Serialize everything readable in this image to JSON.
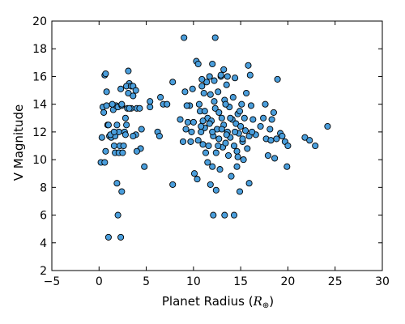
{
  "chart_data": {
    "type": "scatter",
    "title": "",
    "xlabel": "Planet Radius (R⊕)",
    "xlabel_text": "Planet Radius (",
    "xlabel_symbol": "R",
    "xlabel_subscript": "⊕",
    "xlabel_close": ")",
    "ylabel": "V Magnitude",
    "xlim": [
      -5,
      30
    ],
    "ylim": [
      2,
      20
    ],
    "xticks": [
      -5,
      0,
      5,
      10,
      15,
      20,
      25,
      30
    ],
    "yticks": [
      2,
      4,
      6,
      8,
      10,
      12,
      14,
      16,
      18,
      20
    ],
    "grid": false,
    "marker_color": "#4a9edc",
    "marker_edge_color": "#000000",
    "points": [
      [
        0.2,
        9.8
      ],
      [
        0.6,
        9.8
      ],
      [
        0.5,
        13.4
      ],
      [
        0.4,
        13.8
      ],
      [
        0.6,
        16.1
      ],
      [
        0.7,
        16.2
      ],
      [
        0.8,
        14.9
      ],
      [
        0.9,
        12.5
      ],
      [
        1.0,
        12.5
      ],
      [
        0.7,
        10.6
      ],
      [
        0.8,
        13.9
      ],
      [
        1.1,
        11.7
      ],
      [
        1.3,
        11.6
      ],
      [
        1.5,
        13.6
      ],
      [
        1.6,
        11.0
      ],
      [
        1.7,
        10.5
      ],
      [
        1.7,
        11.7
      ],
      [
        1.8,
        13.9
      ],
      [
        1.9,
        12.5
      ],
      [
        1.9,
        8.3
      ],
      [
        2.0,
        13.8
      ],
      [
        2.1,
        12.0
      ],
      [
        2.1,
        10.5
      ],
      [
        2.2,
        11.0
      ],
      [
        2.3,
        15.1
      ],
      [
        2.4,
        13.9
      ],
      [
        2.5,
        10.5
      ],
      [
        2.6,
        11.0
      ],
      [
        2.7,
        12.0
      ],
      [
        2.8,
        13.0
      ],
      [
        2.9,
        12.5
      ],
      [
        3.0,
        13.7
      ],
      [
        3.1,
        14.8
      ],
      [
        3.2,
        15.5
      ],
      [
        2.9,
        15.3
      ],
      [
        3.4,
        15.3
      ],
      [
        3.6,
        15.3
      ],
      [
        3.4,
        13.7
      ],
      [
        3.2,
        13.7
      ],
      [
        3.6,
        14.6
      ],
      [
        3.9,
        15.0
      ],
      [
        4.0,
        13.7
      ],
      [
        4.3,
        13.7
      ],
      [
        4.4,
        10.8
      ],
      [
        3.9,
        11.8
      ],
      [
        3.6,
        11.7
      ],
      [
        4.0,
        10.6
      ],
      [
        4.5,
        12.2
      ],
      [
        4.8,
        9.5
      ],
      [
        5.4,
        13.8
      ],
      [
        5.4,
        14.2
      ],
      [
        2.4,
        7.7
      ],
      [
        2.0,
        6.0
      ],
      [
        2.3,
        4.4
      ],
      [
        1.0,
        4.4
      ],
      [
        3.1,
        16.4
      ],
      [
        2.8,
        11.8
      ],
      [
        1.2,
        11.8
      ],
      [
        1.4,
        14.0
      ],
      [
        2.4,
        14.0
      ],
      [
        0.3,
        11.6
      ],
      [
        1.6,
        12.0
      ],
      [
        6.2,
        12.0
      ],
      [
        6.4,
        11.7
      ],
      [
        6.5,
        14.5
      ],
      [
        6.8,
        14.0
      ],
      [
        7.2,
        14.0
      ],
      [
        7.8,
        15.6
      ],
      [
        7.8,
        8.2
      ],
      [
        8.6,
        12.9
      ],
      [
        8.9,
        11.3
      ],
      [
        9.0,
        18.8
      ],
      [
        9.1,
        14.9
      ],
      [
        9.2,
        12.2
      ],
      [
        9.4,
        12.7
      ],
      [
        9.6,
        13.9
      ],
      [
        9.7,
        11.3
      ],
      [
        9.9,
        15.1
      ],
      [
        10.0,
        12.7
      ],
      [
        10.1,
        9.0
      ],
      [
        10.3,
        17.1
      ],
      [
        10.4,
        8.6
      ],
      [
        10.5,
        16.9
      ],
      [
        10.6,
        14.0
      ],
      [
        10.7,
        13.5
      ],
      [
        10.8,
        12.0
      ],
      [
        10.9,
        15.3
      ],
      [
        11.0,
        11.1
      ],
      [
        11.1,
        14.8
      ],
      [
        11.2,
        12.3
      ],
      [
        11.3,
        10.5
      ],
      [
        11.4,
        15.6
      ],
      [
        11.5,
        13.0
      ],
      [
        11.6,
        11.0
      ],
      [
        11.7,
        16.0
      ],
      [
        11.8,
        14.7
      ],
      [
        11.9,
        12.8
      ],
      [
        12.0,
        9.5
      ],
      [
        12.1,
        11.7
      ],
      [
        12.2,
        15.7
      ],
      [
        12.3,
        13.7
      ],
      [
        12.4,
        10.5
      ],
      [
        12.5,
        12.2
      ],
      [
        12.6,
        14.9
      ],
      [
        12.7,
        11.5
      ],
      [
        12.8,
        9.3
      ],
      [
        12.9,
        16.0
      ],
      [
        13.0,
        13.0
      ],
      [
        13.1,
        10.9
      ],
      [
        13.2,
        12.5
      ],
      [
        13.3,
        14.3
      ],
      [
        13.4,
        11.2
      ],
      [
        13.5,
        15.4
      ],
      [
        13.6,
        12.0
      ],
      [
        13.7,
        10.3
      ],
      [
        13.8,
        13.8
      ],
      [
        13.9,
        11.6
      ],
      [
        14.0,
        8.8
      ],
      [
        14.1,
        12.9
      ],
      [
        14.2,
        14.5
      ],
      [
        14.3,
        11.0
      ],
      [
        14.4,
        15.9
      ],
      [
        14.5,
        12.6
      ],
      [
        14.6,
        10.6
      ],
      [
        14.7,
        13.3
      ],
      [
        14.8,
        11.9
      ],
      [
        14.9,
        7.7
      ],
      [
        15.0,
        12.4
      ],
      [
        15.1,
        14.0
      ],
      [
        15.2,
        11.3
      ],
      [
        15.3,
        10.0
      ],
      [
        15.4,
        13.0
      ],
      [
        15.5,
        12.1
      ],
      [
        15.6,
        14.8
      ],
      [
        15.7,
        10.8
      ],
      [
        15.8,
        16.8
      ],
      [
        15.9,
        11.7
      ],
      [
        16.0,
        16.1
      ],
      [
        16.1,
        13.9
      ],
      [
        16.3,
        12.9
      ],
      [
        12.1,
        6.0
      ],
      [
        13.3,
        6.0
      ],
      [
        14.3,
        6.0
      ],
      [
        12.3,
        18.8
      ],
      [
        12.0,
        16.9
      ],
      [
        11.8,
        8.2
      ],
      [
        12.4,
        7.8
      ],
      [
        13.2,
        16.5
      ],
      [
        12.9,
        16.1
      ],
      [
        9.3,
        13.9
      ],
      [
        10.9,
        15.8
      ],
      [
        11.5,
        9.8
      ],
      [
        14.6,
        9.5
      ],
      [
        13.6,
        16.0
      ],
      [
        16.6,
        11.8
      ],
      [
        17.1,
        12.4
      ],
      [
        17.4,
        13.0
      ],
      [
        17.6,
        14.0
      ],
      [
        17.7,
        11.5
      ],
      [
        17.9,
        10.3
      ],
      [
        18.2,
        11.4
      ],
      [
        18.3,
        12.9
      ],
      [
        18.5,
        13.4
      ],
      [
        18.6,
        10.1
      ],
      [
        18.8,
        11.5
      ],
      [
        18.9,
        15.8
      ],
      [
        19.2,
        11.9
      ],
      [
        19.4,
        11.7
      ],
      [
        19.7,
        11.3
      ],
      [
        19.9,
        9.5
      ],
      [
        20.0,
        11.0
      ],
      [
        18.1,
        12.2
      ],
      [
        21.8,
        11.6
      ],
      [
        22.3,
        11.4
      ],
      [
        22.9,
        11.0
      ],
      [
        24.2,
        12.4
      ],
      [
        16.2,
        12.0
      ],
      [
        15.9,
        8.3
      ],
      [
        11.2,
        13.5
      ],
      [
        12.7,
        13.4
      ],
      [
        13.9,
        13.0
      ],
      [
        10.5,
        11.4
      ],
      [
        12.0,
        12.0
      ],
      [
        13.5,
        11.8
      ],
      [
        14.7,
        10.2
      ],
      [
        15.2,
        11.5
      ],
      [
        11.7,
        12.6
      ],
      [
        13.0,
        12.2
      ],
      [
        14.4,
        12.0
      ],
      [
        12.6,
        11.0
      ],
      [
        11.0,
        12.8
      ],
      [
        10.8,
        12.4
      ],
      [
        9.8,
        12.0
      ],
      [
        14.9,
        13.5
      ],
      [
        13.4,
        14.0
      ],
      [
        12.2,
        14.2
      ]
    ]
  }
}
